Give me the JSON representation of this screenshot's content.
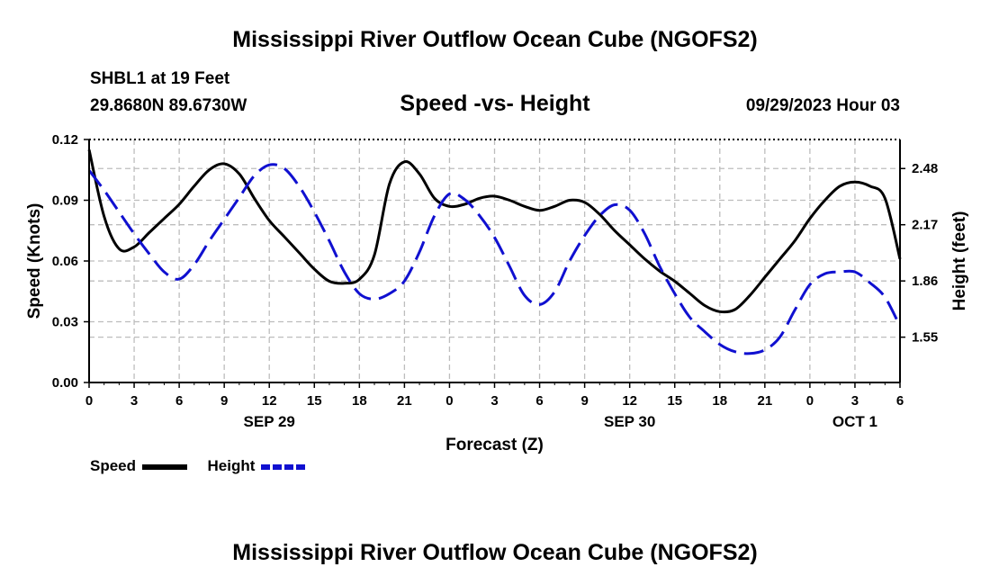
{
  "page": {
    "title": "Mississippi River Outflow Ocean Cube (NGOFS2)",
    "footer_title": "Mississippi River Outflow Ocean Cube (NGOFS2)",
    "station": "SHBL1 at 19 Feet",
    "coords": "29.8680N  89.6730W",
    "datetime": "09/29/2023 Hour 03"
  },
  "chart_data": {
    "type": "line",
    "title": "Speed -vs- Height",
    "xlabel": "Forecast (Z)",
    "ylabel": "Speed (Knots)",
    "y2label": "Height (feet)",
    "xlim": [
      0,
      54
    ],
    "ylim": [
      0,
      0.12
    ],
    "y2lim": [
      1.3,
      2.64
    ],
    "x_ticks": [
      0,
      3,
      6,
      9,
      12,
      15,
      18,
      21,
      24,
      27,
      30,
      33,
      36,
      39,
      42,
      45,
      48,
      51,
      54
    ],
    "x_tick_labels": [
      "0",
      "3",
      "6",
      "9",
      "12",
      "15",
      "18",
      "21",
      "0",
      "3",
      "6",
      "9",
      "12",
      "15",
      "18",
      "21",
      "0",
      "3",
      "6"
    ],
    "date_labels": [
      {
        "x": 12,
        "label": "SEP 29"
      },
      {
        "x": 36,
        "label": "SEP 30"
      },
      {
        "x": 51,
        "label": "OCT 1"
      }
    ],
    "y_ticks": [
      0,
      0.03,
      0.06,
      0.09,
      0.12
    ],
    "y_tick_labels": [
      "0.00",
      "0.03",
      "0.06",
      "0.09",
      "0.12"
    ],
    "y2_ticks": [
      1.55,
      1.86,
      2.17,
      2.48
    ],
    "y2_tick_labels": [
      "1.55",
      "1.86",
      "2.17",
      "2.48"
    ],
    "series": [
      {
        "name": "Speed",
        "axis": "left",
        "color": "#000000",
        "dash": "",
        "x": [
          0,
          1,
          2,
          3,
          4,
          5,
          6,
          7,
          8,
          9,
          10,
          11,
          12,
          13,
          14,
          15,
          16,
          17,
          18,
          19,
          20,
          21,
          22,
          23,
          24,
          25,
          26,
          27,
          28,
          29,
          30,
          31,
          32,
          33,
          34,
          35,
          36,
          37,
          38,
          39,
          40,
          41,
          42,
          43,
          44,
          45,
          46,
          47,
          48,
          49,
          50,
          51,
          52,
          53,
          54
        ],
        "values": [
          0.115,
          0.082,
          0.066,
          0.067,
          0.074,
          0.081,
          0.088,
          0.097,
          0.105,
          0.108,
          0.103,
          0.091,
          0.08,
          0.072,
          0.064,
          0.056,
          0.05,
          0.049,
          0.051,
          0.063,
          0.098,
          0.109,
          0.103,
          0.091,
          0.087,
          0.088,
          0.091,
          0.092,
          0.09,
          0.087,
          0.085,
          0.087,
          0.09,
          0.089,
          0.083,
          0.075,
          0.068,
          0.061,
          0.055,
          0.05,
          0.044,
          0.038,
          0.035,
          0.036,
          0.043,
          0.052,
          0.061,
          0.07,
          0.081,
          0.09,
          0.097,
          0.099,
          0.097,
          0.091,
          0.061
        ]
      },
      {
        "name": "Height",
        "axis": "right",
        "color": "#1010d0",
        "dash": "22,9",
        "x": [
          0,
          1,
          2,
          3,
          4,
          5,
          6,
          7,
          8,
          9,
          10,
          11,
          12,
          13,
          14,
          15,
          16,
          17,
          18,
          19,
          20,
          21,
          22,
          23,
          24,
          25,
          26,
          27,
          28,
          29,
          30,
          31,
          32,
          33,
          34,
          35,
          36,
          37,
          38,
          39,
          40,
          41,
          42,
          43,
          44,
          45,
          46,
          47,
          48,
          49,
          50,
          51,
          52,
          53,
          54
        ],
        "values": [
          2.47,
          2.36,
          2.24,
          2.12,
          2.01,
          1.91,
          1.87,
          1.95,
          2.08,
          2.2,
          2.32,
          2.44,
          2.5,
          2.48,
          2.38,
          2.24,
          2.08,
          1.91,
          1.79,
          1.76,
          1.79,
          1.86,
          2.02,
          2.22,
          2.34,
          2.31,
          2.22,
          2.1,
          1.94,
          1.78,
          1.73,
          1.8,
          1.97,
          2.11,
          2.22,
          2.28,
          2.25,
          2.12,
          1.94,
          1.79,
          1.66,
          1.58,
          1.51,
          1.47,
          1.46,
          1.48,
          1.55,
          1.7,
          1.84,
          1.9,
          1.91,
          1.91,
          1.85,
          1.77,
          1.61
        ]
      }
    ]
  },
  "legend": {
    "items": [
      {
        "label": "Speed",
        "color": "#000000",
        "dash": ""
      },
      {
        "label": "Height",
        "color": "#1010d0",
        "dash": "8,4"
      }
    ]
  }
}
